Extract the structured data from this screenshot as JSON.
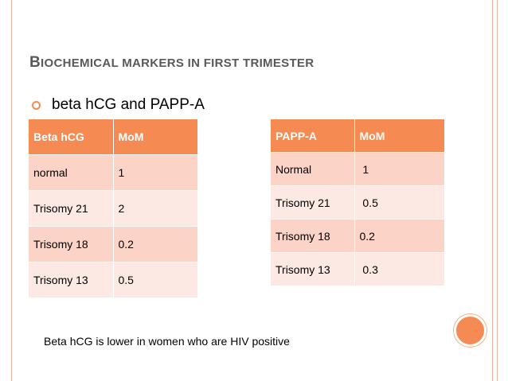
{
  "slide": {
    "title_first_letter": "B",
    "title_rest": "IOCHEMICAL MARKERS IN FIRST TRIMESTER",
    "bullet": "beta hCG and PAPP-A",
    "note": "Beta hCG is lower in women who are HIV positive"
  },
  "beta_table": {
    "headers": [
      "Beta hCG",
      "MoM"
    ],
    "rows": [
      [
        "normal",
        "1"
      ],
      [
        "Trisomy 21",
        "2"
      ],
      [
        "Trisomy 18",
        "0.2"
      ],
      [
        "Trisomy 13",
        "0.5"
      ]
    ]
  },
  "papp_table": {
    "headers": [
      "PAPP-A",
      "MoM"
    ],
    "rows": [
      [
        "Normal",
        " 1"
      ],
      [
        "Trisomy 21",
        " 0.5"
      ],
      [
        "Trisomy 18",
        "0.2"
      ],
      [
        "Trisomy 13",
        " 0.3"
      ]
    ]
  },
  "colors": {
    "accent": "#f58b53",
    "row_odd": "#fbd3c7",
    "row_even": "#fde9e3",
    "title": "#595959"
  },
  "icons": {
    "bullet": "circle-bullet-icon",
    "decoration": "orange-circle-icon"
  }
}
